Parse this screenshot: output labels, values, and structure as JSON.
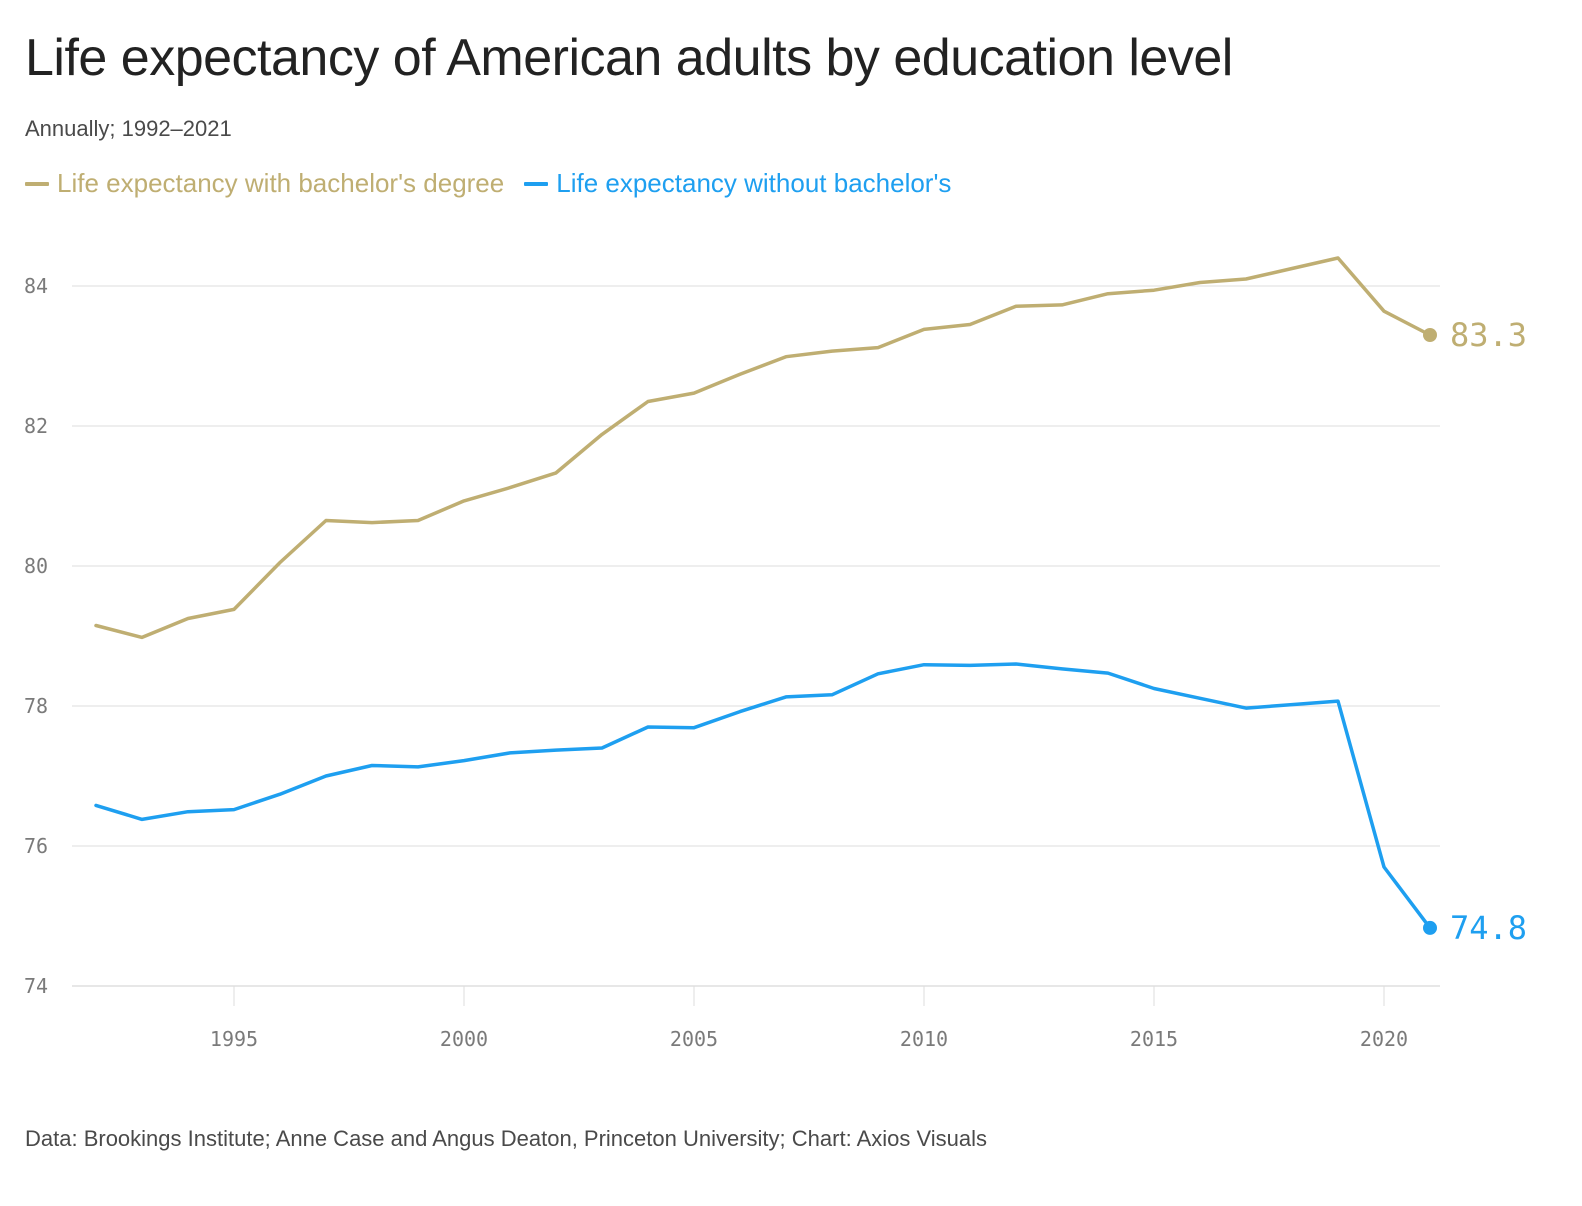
{
  "header": {
    "title": "Life expectancy of American adults by education level",
    "subtitle": "Annually; 1992–2021"
  },
  "legend": {
    "items": [
      {
        "label": "Life expectancy with bachelor's degree",
        "color": "#bfae72"
      },
      {
        "label": "Life expectancy without bachelor's",
        "color": "#1e9ff0"
      }
    ]
  },
  "footer": {
    "source": "Data: Brookings Institute; Anne Case and Angus Deaton, Princeton University; Chart: Axios Visuals"
  },
  "chart_data": {
    "type": "line",
    "title": "Life expectancy of American adults by education level",
    "subtitle": "Annually; 1992–2021",
    "xlabel": "",
    "ylabel": "",
    "xlim": [
      1992,
      2021
    ],
    "ylim": [
      74,
      84
    ],
    "x_ticks": [
      1995,
      2000,
      2005,
      2010,
      2015,
      2020
    ],
    "y_ticks": [
      74,
      76,
      78,
      80,
      82,
      84
    ],
    "grid": "horizontal",
    "legend_position": "top-left",
    "x": [
      1992,
      1993,
      1994,
      1995,
      1996,
      1997,
      1998,
      1999,
      2000,
      2001,
      2002,
      2003,
      2004,
      2005,
      2006,
      2007,
      2008,
      2009,
      2010,
      2011,
      2012,
      2013,
      2014,
      2015,
      2016,
      2017,
      2018,
      2019,
      2020,
      2021
    ],
    "series": [
      {
        "name": "Life expectancy with bachelor's degree",
        "color": "#bfae72",
        "end_label": "83.3",
        "values": [
          79.15,
          78.98,
          79.25,
          79.38,
          80.05,
          80.65,
          80.62,
          80.65,
          80.93,
          81.12,
          81.33,
          81.88,
          82.35,
          82.47,
          82.74,
          82.99,
          83.07,
          83.12,
          83.38,
          83.45,
          83.71,
          83.73,
          83.89,
          83.94,
          84.05,
          84.1,
          84.25,
          84.4,
          83.64,
          83.3
        ]
      },
      {
        "name": "Life expectancy without bachelor's",
        "color": "#1e9ff0",
        "end_label": "74.8",
        "values": [
          76.58,
          76.38,
          76.49,
          76.52,
          76.74,
          77.0,
          77.15,
          77.13,
          77.22,
          77.33,
          77.37,
          77.4,
          77.7,
          77.69,
          77.92,
          78.13,
          78.16,
          78.46,
          78.59,
          78.58,
          78.6,
          78.53,
          78.47,
          78.25,
          78.11,
          77.97,
          78.02,
          78.07,
          75.7,
          74.83
        ]
      }
    ]
  }
}
